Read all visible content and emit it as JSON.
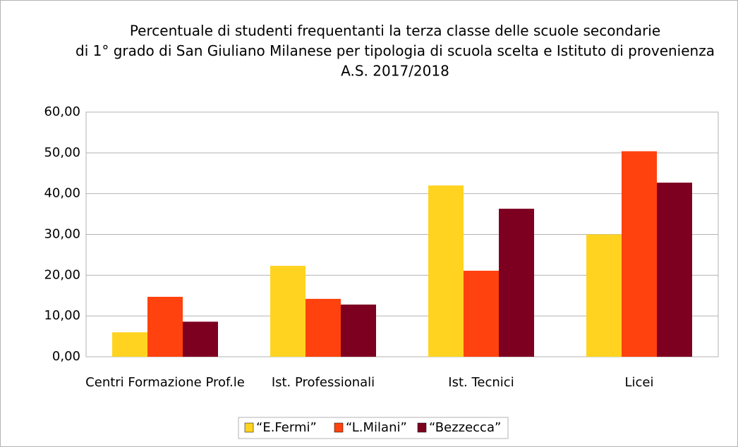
{
  "chart_data": {
    "type": "bar",
    "title": [
      "Percentuale di studenti frequentanti la terza classe delle scuole secondarie",
      "di 1° grado di San Giuliano Milanese per tipologia di scuola scelta e Istituto di provenienza",
      "A.S. 2017/2018"
    ],
    "categories": [
      "Centri Formazione Prof.le",
      "Ist. Professionali",
      "Ist. Tecnici",
      "Licei"
    ],
    "series": [
      {
        "name": "“E.Fermi”",
        "color": "#ffd320",
        "values": [
          6.0,
          22.3,
          42.0,
          30.0
        ]
      },
      {
        "name": "“L.Milani”",
        "color": "#ff420e",
        "values": [
          14.7,
          14.2,
          21.1,
          50.4
        ]
      },
      {
        "name": "“Bezzecca”",
        "color": "#7e0021",
        "values": [
          8.6,
          12.8,
          36.3,
          42.7
        ]
      }
    ],
    "ylim": [
      0,
      60
    ],
    "yticks": [
      {
        "value": 0,
        "label": "0,00"
      },
      {
        "value": 10,
        "label": "10,00"
      },
      {
        "value": 20,
        "label": "20,00"
      },
      {
        "value": 30,
        "label": "30,00"
      },
      {
        "value": 40,
        "label": "40,00"
      },
      {
        "value": 50,
        "label": "50,00"
      },
      {
        "value": 60,
        "label": "60,00"
      }
    ],
    "grid": true,
    "legend": "bottom"
  }
}
